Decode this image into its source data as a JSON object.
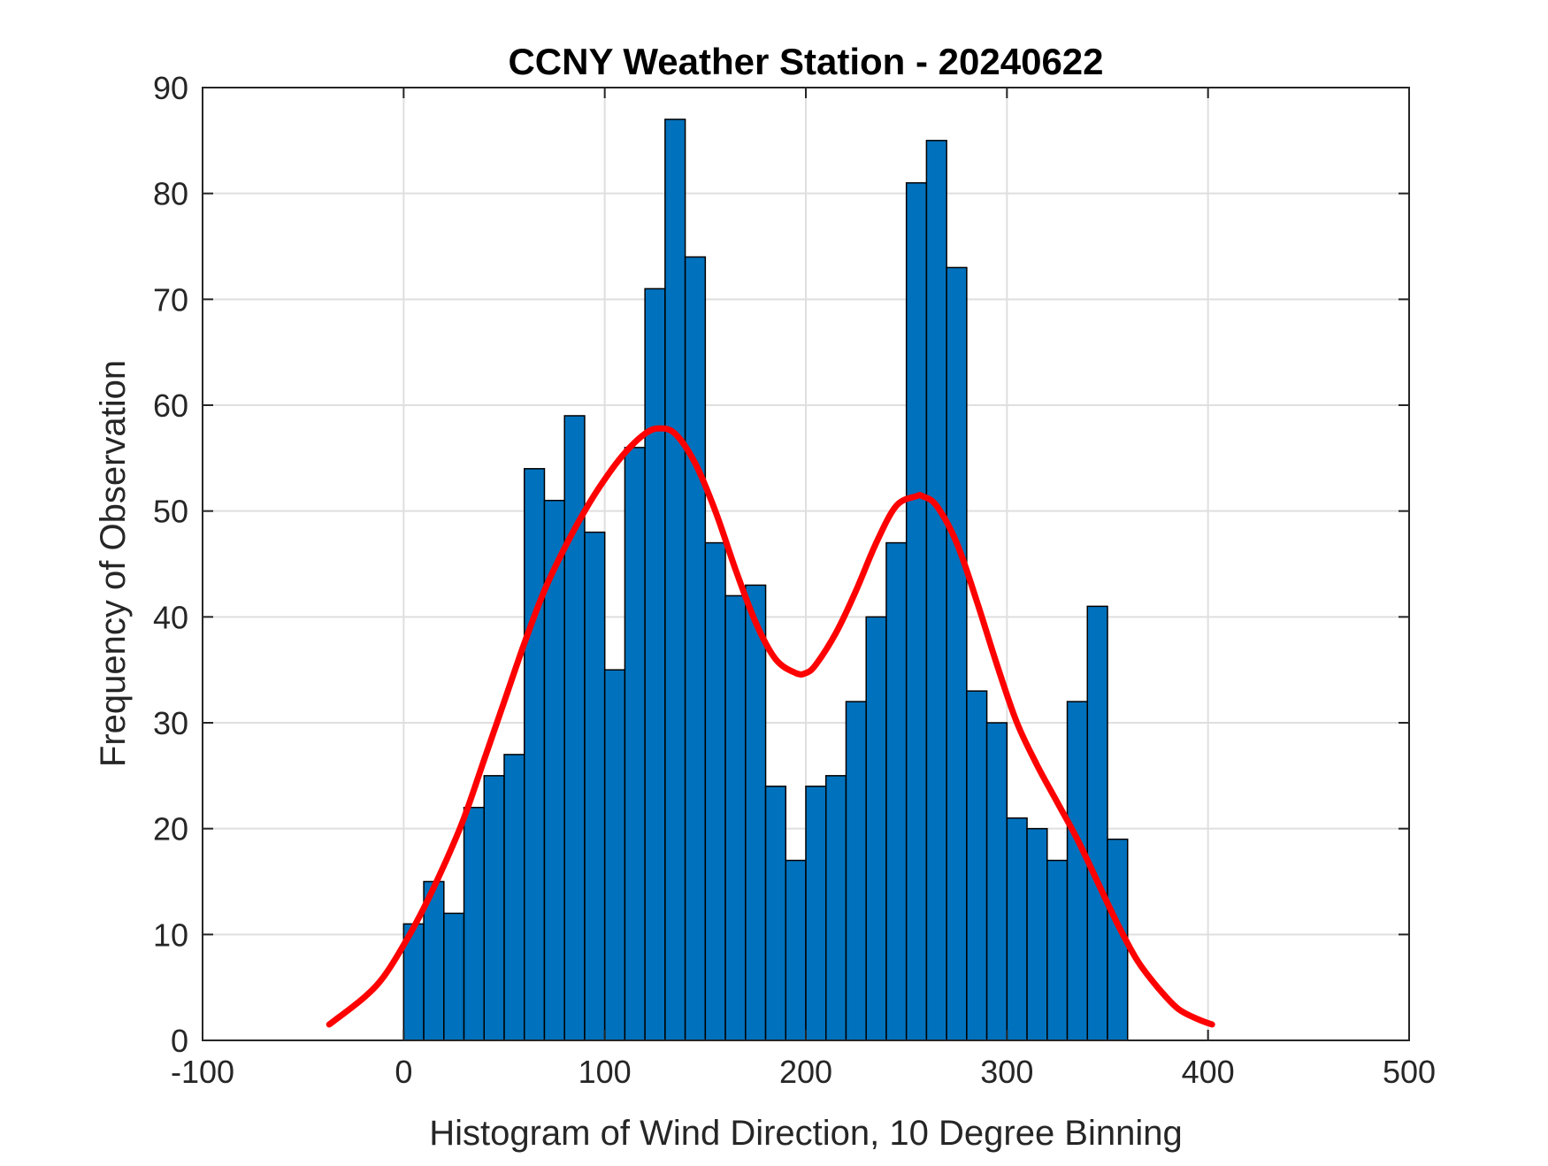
{
  "chart_data": {
    "type": "bar",
    "title": "CCNY Weather Station - 20240622",
    "xlabel": "Histogram of Wind Direction, 10 Degree Binning",
    "ylabel": "Frequency of Observation",
    "xlim": [
      -100,
      500
    ],
    "ylim": [
      0,
      90
    ],
    "xticks": [
      -100,
      0,
      100,
      200,
      300,
      400,
      500
    ],
    "yticks": [
      0,
      10,
      20,
      30,
      40,
      50,
      60,
      70,
      80,
      90
    ],
    "grid": true,
    "bin_width": 10,
    "bin_edges_start": [
      0,
      10,
      20,
      30,
      40,
      50,
      60,
      70,
      80,
      90,
      100,
      110,
      120,
      130,
      140,
      150,
      160,
      170,
      180,
      190,
      200,
      210,
      220,
      230,
      240,
      250,
      260,
      270,
      280,
      290,
      300,
      310,
      320,
      330,
      340,
      350
    ],
    "values": [
      11,
      15,
      12,
      22,
      25,
      27,
      54,
      51,
      59,
      48,
      35,
      56,
      71,
      87,
      74,
      47,
      42,
      43,
      24,
      17,
      24,
      25,
      32,
      40,
      47,
      81,
      85,
      73,
      33,
      30,
      21,
      20,
      17,
      32,
      41,
      19
    ],
    "bar_color": "#0072BD",
    "bar_edge_color": "#000000",
    "fit_curve": {
      "color": "#FF0000",
      "x": [
        -37,
        -20,
        -10,
        0,
        10,
        20,
        30,
        40,
        50,
        60,
        70,
        80,
        90,
        100,
        110,
        120,
        127,
        135,
        145,
        155,
        165,
        175,
        185,
        195,
        200,
        205,
        215,
        225,
        235,
        245,
        255,
        258,
        265,
        275,
        285,
        295,
        305,
        315,
        325,
        335,
        345,
        355,
        365,
        375,
        385,
        395,
        402
      ],
      "y": [
        1.5,
        4,
        6,
        9,
        12.5,
        16.5,
        21,
        26.5,
        32,
        37.5,
        42.5,
        46.5,
        50,
        53,
        55.5,
        57.3,
        57.8,
        57.3,
        54.5,
        50,
        44.5,
        39.5,
        36,
        34.7,
        34.7,
        35.5,
        38.5,
        42.5,
        47,
        50.5,
        51.4,
        51.4,
        50.5,
        47,
        41.5,
        35.5,
        30,
        26,
        22.5,
        19,
        15,
        11,
        7.5,
        5,
        3,
        2,
        1.5
      ]
    }
  }
}
